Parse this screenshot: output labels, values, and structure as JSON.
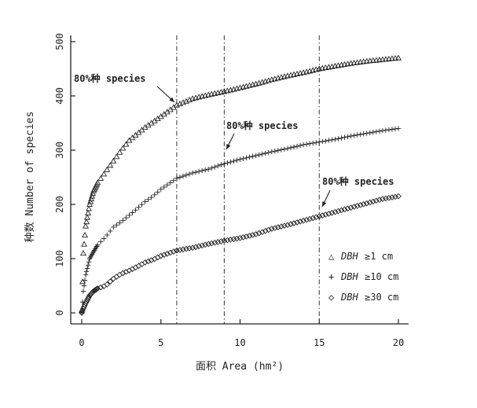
{
  "chart_data": {
    "type": "scatter",
    "xlabel": "面积 Area (hm²)",
    "ylabel": "种数 Number of species",
    "xlim": [
      0,
      20
    ],
    "ylim": [
      0,
      500
    ],
    "xticks": [
      "0",
      "5",
      "10",
      "15",
      "20"
    ],
    "yticks": [
      "0",
      "100",
      "200",
      "300",
      "400",
      "500"
    ],
    "vertical_lines": [
      6,
      9,
      15
    ],
    "annotations": [
      {
        "text": "80%种 species",
        "x": 6,
        "y": 385
      },
      {
        "text": "80%种 species",
        "x": 9,
        "y": 275
      },
      {
        "text": "80%种 species",
        "x": 15,
        "y": 178
      }
    ],
    "legend": [
      {
        "symbol": "△",
        "prefix": "DBH",
        "text": "≥1 cm"
      },
      {
        "symbol": "+",
        "prefix": "DBH",
        "text": "≥10 cm"
      },
      {
        "symbol": "◇",
        "prefix": "DBH",
        "text": "≥30 cm"
      }
    ],
    "series": [
      {
        "name": "DBH ≥ 1 cm",
        "marker": "triangle",
        "x": [
          0,
          0.1,
          0.25,
          0.5,
          0.75,
          1,
          1.5,
          2,
          2.5,
          3,
          3.5,
          4,
          4.5,
          5,
          6,
          7,
          8,
          9,
          10,
          11,
          12,
          13,
          14,
          15,
          16,
          17,
          18,
          19,
          20
        ],
        "y": [
          5,
          110,
          160,
          200,
          225,
          240,
          260,
          280,
          300,
          318,
          330,
          342,
          352,
          362,
          383,
          395,
          402,
          408,
          415,
          422,
          430,
          437,
          443,
          450,
          455,
          460,
          464,
          467,
          470
        ]
      },
      {
        "name": "DBH ≥ 10 cm",
        "marker": "plus",
        "x": [
          0,
          0.1,
          0.25,
          0.5,
          0.75,
          1,
          1.5,
          2,
          2.5,
          3,
          3.5,
          4,
          4.5,
          5,
          6,
          7,
          8,
          9,
          10,
          11,
          12,
          13,
          14,
          15,
          16,
          17,
          18,
          19,
          20
        ],
        "y": [
          0,
          40,
          70,
          100,
          113,
          125,
          140,
          158,
          168,
          180,
          192,
          205,
          215,
          228,
          248,
          258,
          265,
          275,
          283,
          290,
          297,
          303,
          310,
          315,
          320,
          326,
          331,
          336,
          340
        ]
      },
      {
        "name": "DBH ≥ 30 cm",
        "marker": "diamond",
        "x": [
          0,
          0.1,
          0.25,
          0.5,
          0.75,
          1,
          1.5,
          2,
          2.5,
          3,
          3.5,
          4,
          4.5,
          5,
          6,
          7,
          8,
          9,
          10,
          11,
          12,
          13,
          14,
          15,
          16,
          17,
          18,
          19,
          20
        ],
        "y": [
          0,
          8,
          18,
          32,
          40,
          45,
          50,
          63,
          72,
          78,
          85,
          93,
          98,
          105,
          115,
          120,
          127,
          133,
          138,
          145,
          155,
          162,
          170,
          178,
          186,
          194,
          202,
          210,
          215
        ]
      }
    ]
  }
}
